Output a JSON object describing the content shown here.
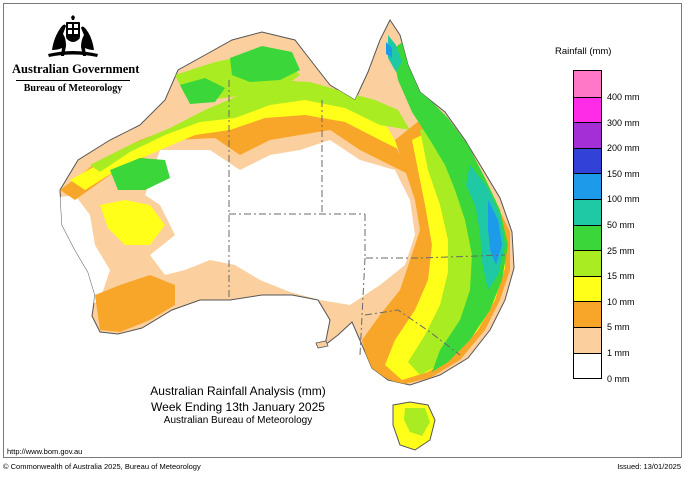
{
  "header": {
    "government": "Australian Government",
    "bureau": "Bureau of Meteorology"
  },
  "legend": {
    "title": "Rainfall (mm)",
    "classes": [
      {
        "label": "400 mm",
        "color": "#ff77c6"
      },
      {
        "label": "300 mm",
        "color": "#ff2ce7"
      },
      {
        "label": "200 mm",
        "color": "#a42fd7"
      },
      {
        "label": "150 mm",
        "color": "#3242d9"
      },
      {
        "label": "100 mm",
        "color": "#1e9aea"
      },
      {
        "label": "50 mm",
        "color": "#20c9a6"
      },
      {
        "label": "25 mm",
        "color": "#3ad63a"
      },
      {
        "label": "15 mm",
        "color": "#a8ec21"
      },
      {
        "label": "10 mm",
        "color": "#ffff1a"
      },
      {
        "label": "5 mm",
        "color": "#f8a62a"
      },
      {
        "label": "1 mm",
        "color": "#fbd09e"
      },
      {
        "label": "0 mm",
        "color": "#ffffff"
      }
    ]
  },
  "map_title": {
    "line1": "Australian Rainfall Analysis (mm)",
    "line2": "Week Ending 13th January 2025",
    "line3": "Australian Bureau of Meteorology"
  },
  "footer": {
    "url": "http://www.bom.gov.au",
    "copyright": "© Commonwealth of Australia 2025, Bureau of Meteorology",
    "issued": "Issued: 13/01/2025"
  },
  "colors": {
    "state_border": "#6a6a6a",
    "coastline": "#555555"
  }
}
